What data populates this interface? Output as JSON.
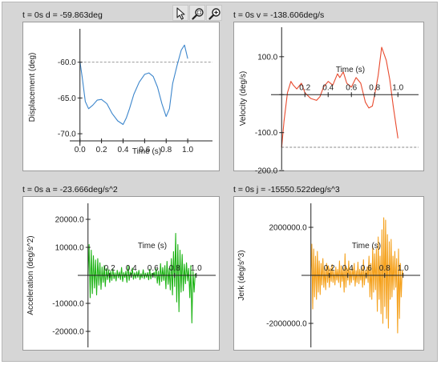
{
  "toolbar": {
    "icons": [
      "cursor-icon",
      "zoom-region-icon",
      "zoom-magnifier-icon"
    ]
  },
  "panels": [
    {
      "caption": "t = 0s  d = -59.863deg"
    },
    {
      "caption": "t = 0s  v = -138.606deg/s"
    },
    {
      "caption": "t = 0s  a = -23.666deg/s^2"
    },
    {
      "caption": "t = 0s  j = -15550.522deg/s^3"
    }
  ],
  "chart_data": [
    {
      "type": "line",
      "name": "displacement",
      "color": "#3c86cc",
      "xlabel": "Time (s)",
      "ylabel": "Displacement (deg)",
      "xlim": [
        -0.05,
        1.2
      ],
      "ylim": [
        -71,
        -56
      ],
      "xticks": [
        0.0,
        0.2,
        0.4,
        0.6,
        0.8,
        1.0
      ],
      "xtick_labels": [
        "0.0",
        "0.2",
        "0.4",
        "0.6",
        "0.8",
        "1.0"
      ],
      "yticks": [
        -60.0,
        -65.0,
        -70.0
      ],
      "ytick_labels": [
        "-60.0",
        "-65.0",
        "-70.0"
      ],
      "reference_y": -60.0,
      "x": [
        0.0,
        0.02,
        0.05,
        0.08,
        0.12,
        0.16,
        0.2,
        0.25,
        0.3,
        0.35,
        0.4,
        0.43,
        0.46,
        0.5,
        0.55,
        0.6,
        0.64,
        0.68,
        0.72,
        0.76,
        0.8,
        0.83,
        0.86,
        0.9,
        0.94,
        0.97,
        1.0
      ],
      "y": [
        -59.9,
        -62.0,
        -65.5,
        -66.5,
        -66.0,
        -65.3,
        -65.2,
        -65.8,
        -67.2,
        -68.2,
        -68.7,
        -67.8,
        -66.5,
        -64.5,
        -62.8,
        -61.7,
        -61.5,
        -62.0,
        -63.5,
        -65.8,
        -67.6,
        -66.5,
        -63.0,
        -60.5,
        -58.3,
        -57.6,
        -59.5
      ]
    },
    {
      "type": "line",
      "name": "velocity",
      "color": "#e84a2e",
      "xlabel": "Time (s)",
      "ylabel": "Velocity (deg/s)",
      "xlim": [
        -0.05,
        1.15
      ],
      "ylim": [
        -185,
        165
      ],
      "xticks": [
        0.2,
        0.4,
        0.6,
        0.8,
        1.0
      ],
      "xtick_labels": [
        "0.2",
        "0.4",
        "0.6",
        "0.8",
        "1.0"
      ],
      "yticks": [
        100.0,
        0.0,
        -100.0,
        -200.0
      ],
      "ytick_labels": [
        "100.0",
        "",
        "-100.0",
        "-200.0"
      ],
      "reference_y": -138.6,
      "x": [
        0.0,
        0.02,
        0.05,
        0.08,
        0.1,
        0.13,
        0.17,
        0.2,
        0.25,
        0.3,
        0.33,
        0.36,
        0.4,
        0.44,
        0.48,
        0.5,
        0.53,
        0.56,
        0.6,
        0.64,
        0.68,
        0.72,
        0.75,
        0.78,
        0.8,
        0.83,
        0.86,
        0.9,
        0.93,
        0.96,
        1.0
      ],
      "y": [
        -138.6,
        -70.0,
        5.0,
        35.0,
        25.0,
        15.0,
        30.0,
        5.0,
        -10.0,
        -15.0,
        -5.0,
        20.0,
        35.0,
        25.0,
        55.0,
        45.0,
        60.0,
        30.0,
        20.0,
        45.0,
        30.0,
        -20.0,
        -35.0,
        -30.0,
        0.0,
        50.0,
        125.0,
        90.0,
        40.0,
        -30.0,
        -115.0
      ]
    },
    {
      "type": "line",
      "name": "acceleration",
      "color": "#1eb416",
      "xlabel": "Time (s)",
      "ylabel": "Acceleration (deg/s^2)",
      "xlim": [
        -0.05,
        1.15
      ],
      "ylim": [
        -24000,
        24000
      ],
      "xticks": [
        0.2,
        0.4,
        0.6,
        0.8,
        1.0
      ],
      "xtick_labels": [
        "0.2",
        "0.4",
        "0.6",
        "0.8",
        "1.0"
      ],
      "yticks": [
        20000.0,
        10000.0,
        0.0,
        -10000.0,
        -20000.0
      ],
      "ytick_labels": [
        "20000.0",
        "10000.0",
        "",
        "-10000.0",
        "-20000.0"
      ],
      "x": [
        0.0,
        0.01,
        0.02,
        0.03,
        0.04,
        0.05,
        0.06,
        0.07,
        0.08,
        0.09,
        0.1,
        0.11,
        0.12,
        0.13,
        0.14,
        0.15,
        0.16,
        0.17,
        0.18,
        0.19,
        0.2,
        0.21,
        0.22,
        0.23,
        0.24,
        0.25,
        0.26,
        0.27,
        0.28,
        0.29,
        0.3,
        0.31,
        0.32,
        0.33,
        0.34,
        0.35,
        0.36,
        0.37,
        0.38,
        0.39,
        0.4,
        0.41,
        0.42,
        0.43,
        0.44,
        0.45,
        0.46,
        0.47,
        0.48,
        0.49,
        0.5,
        0.51,
        0.52,
        0.53,
        0.54,
        0.55,
        0.56,
        0.57,
        0.58,
        0.59,
        0.6,
        0.61,
        0.62,
        0.63,
        0.64,
        0.65,
        0.66,
        0.67,
        0.68,
        0.69,
        0.7,
        0.71,
        0.72,
        0.73,
        0.74,
        0.75,
        0.76,
        0.77,
        0.78,
        0.79,
        0.8,
        0.81,
        0.82,
        0.83,
        0.84,
        0.85,
        0.86,
        0.87,
        0.88,
        0.89,
        0.9,
        0.91,
        0.92,
        0.93,
        0.94,
        0.95,
        0.96,
        0.97,
        0.98,
        0.99,
        1.0
      ],
      "y": [
        -24,
        11000,
        -8000,
        9000,
        -6500,
        7000,
        -4500,
        5500,
        -7000,
        6000,
        -3500,
        4500,
        -5000,
        3000,
        -2500,
        3500,
        -4000,
        2500,
        -1500,
        2000,
        -2500,
        1500,
        -1800,
        2200,
        -1200,
        900,
        -2000,
        1800,
        -900,
        1200,
        -1500,
        2800,
        -2200,
        1000,
        -800,
        1500,
        -2500,
        3500,
        -1800,
        1200,
        -600,
        2600,
        -1400,
        900,
        -1100,
        1300,
        -700,
        1800,
        -1500,
        600,
        -900,
        2000,
        -1200,
        800,
        -700,
        1000,
        -1600,
        2200,
        -1300,
        700,
        -500,
        1100,
        -900,
        2400,
        -2800,
        1500,
        -3500,
        4200,
        -2200,
        2800,
        -1800,
        3500,
        -4800,
        5000,
        -3200,
        2500,
        -5200,
        6000,
        -7000,
        8500,
        -4000,
        15000,
        -9500,
        11000,
        -13000,
        9000,
        -6000,
        7500,
        -5500,
        4000,
        -3000,
        4500,
        -2000,
        2500,
        -8000,
        3500,
        -17000,
        1500,
        -6000,
        500,
        -24
      ]
    },
    {
      "type": "line",
      "name": "jerk",
      "color": "#f5a11c",
      "xlabel": "Time (s)",
      "ylabel": "Jerk (deg/s^3)",
      "xlim": [
        -0.05,
        1.15
      ],
      "ylim": [
        -2800000,
        2800000
      ],
      "xticks": [
        0.2,
        0.4,
        0.6,
        0.8,
        1.0
      ],
      "xtick_labels": [
        "0.2",
        "0.4",
        "0.6",
        "0.8",
        "1.0"
      ],
      "yticks": [
        2000000.0,
        0.0,
        -2000000.0
      ],
      "ytick_labels": [
        "2000000.0",
        "",
        "-2000000.0"
      ],
      "x": [
        0.0,
        0.01,
        0.02,
        0.03,
        0.04,
        0.05,
        0.06,
        0.07,
        0.08,
        0.09,
        0.1,
        0.11,
        0.12,
        0.13,
        0.14,
        0.15,
        0.16,
        0.17,
        0.18,
        0.19,
        0.2,
        0.21,
        0.22,
        0.23,
        0.24,
        0.25,
        0.26,
        0.27,
        0.28,
        0.29,
        0.3,
        0.31,
        0.32,
        0.33,
        0.34,
        0.35,
        0.36,
        0.37,
        0.38,
        0.39,
        0.4,
        0.41,
        0.42,
        0.43,
        0.44,
        0.45,
        0.46,
        0.47,
        0.48,
        0.49,
        0.5,
        0.51,
        0.52,
        0.53,
        0.54,
        0.55,
        0.56,
        0.57,
        0.58,
        0.59,
        0.6,
        0.61,
        0.62,
        0.63,
        0.64,
        0.65,
        0.66,
        0.67,
        0.68,
        0.69,
        0.7,
        0.71,
        0.72,
        0.73,
        0.74,
        0.75,
        0.76,
        0.77,
        0.78,
        0.79,
        0.8,
        0.81,
        0.82,
        0.83,
        0.84,
        0.85,
        0.86,
        0.87,
        0.88,
        0.89,
        0.9,
        0.91,
        0.92,
        0.93,
        0.94,
        0.95,
        0.96,
        0.97,
        0.98,
        0.99,
        1.0
      ],
      "y": [
        -15550,
        1300000,
        -1400000,
        1100000,
        -900000,
        800000,
        -1000000,
        1000000,
        -700000,
        600000,
        -800000,
        500000,
        -400000,
        700000,
        -500000,
        300000,
        -600000,
        500000,
        -300000,
        400000,
        -500000,
        300000,
        -250000,
        450000,
        -300000,
        200000,
        -400000,
        350000,
        -200000,
        250000,
        -300000,
        600000,
        -500000,
        400000,
        -250000,
        300000,
        -700000,
        900000,
        -500000,
        300000,
        -200000,
        600000,
        -400000,
        250000,
        -300000,
        350000,
        -200000,
        500000,
        -450000,
        200000,
        -300000,
        550000,
        -350000,
        250000,
        -200000,
        300000,
        -500000,
        650000,
        -400000,
        200000,
        -150000,
        350000,
        -300000,
        800000,
        -900000,
        500000,
        -1000000,
        1200000,
        -700000,
        900000,
        -600000,
        1100000,
        -1500000,
        1600000,
        -1000000,
        800000,
        -1600000,
        1900000,
        -2000000,
        2400000,
        -1300000,
        2300000,
        -1800000,
        1700000,
        -2200000,
        1400000,
        -1000000,
        1500000,
        -900000,
        800000,
        -600000,
        1000000,
        -500000,
        700000,
        -2400000,
        1100000,
        -1800000,
        500000,
        -900000,
        200000,
        -15550
      ]
    }
  ]
}
